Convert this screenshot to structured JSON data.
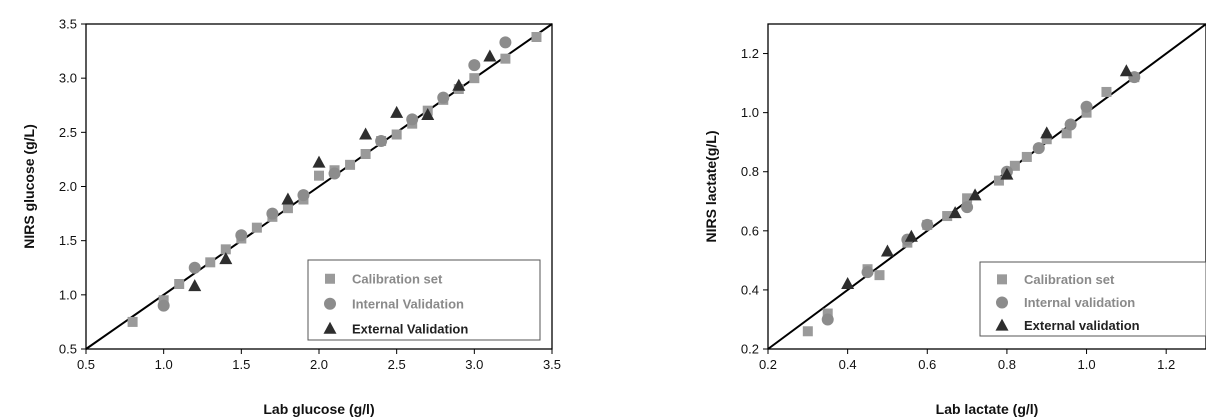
{
  "colors": {
    "calibration": "#9a9a9a",
    "internal": "#8c8c8c",
    "external": "#2e2e2e",
    "line": "#000000",
    "legend_gray_text": "#8a8a8a",
    "legend_dark_text": "#222222"
  },
  "chart_data": [
    {
      "type": "scatter",
      "xlabel": "Lab glucose (g/l)",
      "ylabel": "NIRS  glucose (g/L)",
      "xlim": [
        0.5,
        3.5
      ],
      "ylim": [
        0.5,
        3.5
      ],
      "xticks": [
        "0.5",
        "1.0",
        "1.5",
        "2.0",
        "2.5",
        "3.0",
        "3.5"
      ],
      "yticks": [
        "0.5",
        "1.0",
        "1.5",
        "2.0",
        "2.5",
        "3.0",
        "3.5"
      ],
      "reference_line": [
        [
          0.5,
          0.5
        ],
        [
          3.5,
          3.5
        ]
      ],
      "legend_position": "bottom-right",
      "series": [
        {
          "name": "Calibration set",
          "marker": "square",
          "x": [
            0.8,
            1.0,
            1.1,
            1.3,
            1.4,
            1.5,
            1.6,
            1.7,
            1.8,
            1.9,
            2.0,
            2.1,
            2.2,
            2.3,
            2.4,
            2.5,
            2.6,
            2.7,
            2.8,
            2.9,
            3.0,
            3.2,
            3.4
          ],
          "y": [
            0.75,
            0.95,
            1.1,
            1.3,
            1.42,
            1.52,
            1.62,
            1.72,
            1.8,
            1.88,
            2.1,
            2.15,
            2.2,
            2.3,
            2.42,
            2.48,
            2.58,
            2.7,
            2.8,
            2.9,
            3.0,
            3.18,
            3.38
          ]
        },
        {
          "name": "Internal Validation",
          "marker": "circle",
          "x": [
            1.0,
            1.2,
            1.5,
            1.7,
            1.9,
            2.1,
            2.4,
            2.6,
            2.8,
            3.0,
            3.2
          ],
          "y": [
            0.9,
            1.25,
            1.55,
            1.75,
            1.92,
            2.12,
            2.42,
            2.62,
            2.82,
            3.12,
            3.33
          ]
        },
        {
          "name": "External Validation",
          "marker": "triangle",
          "x": [
            1.2,
            1.4,
            1.8,
            2.0,
            2.3,
            2.5,
            2.7,
            2.9,
            3.1
          ],
          "y": [
            1.08,
            1.33,
            1.88,
            2.22,
            2.48,
            2.68,
            2.66,
            2.93,
            3.2
          ]
        }
      ]
    },
    {
      "type": "scatter",
      "xlabel": "Lab lactate (g/l)",
      "ylabel": "NIRS  lactate(g/L)",
      "xlim": [
        0.2,
        1.3
      ],
      "ylim": [
        0.2,
        1.3
      ],
      "xticks": [
        "0.2",
        "0.4",
        "0.6",
        "0.8",
        "1.0",
        "1.2"
      ],
      "yticks": [
        "0.2",
        "0.4",
        "0.6",
        "0.8",
        "1.0",
        "1.2"
      ],
      "reference_line": [
        [
          0.2,
          0.2
        ],
        [
          1.3,
          1.3
        ]
      ],
      "legend_position": "bottom-right",
      "series": [
        {
          "name": "Calibration set",
          "marker": "square",
          "x": [
            0.3,
            0.35,
            0.45,
            0.48,
            0.55,
            0.6,
            0.65,
            0.7,
            0.78,
            0.82,
            0.85,
            0.9,
            0.95,
            1.0,
            1.05,
            1.12
          ],
          "y": [
            0.26,
            0.32,
            0.47,
            0.45,
            0.56,
            0.62,
            0.65,
            0.71,
            0.77,
            0.82,
            0.85,
            0.91,
            0.93,
            1.0,
            1.07,
            1.12
          ]
        },
        {
          "name": "Internal validation",
          "marker": "circle",
          "x": [
            0.35,
            0.45,
            0.55,
            0.6,
            0.7,
            0.8,
            0.88,
            0.96,
            1.0,
            1.12
          ],
          "y": [
            0.3,
            0.46,
            0.57,
            0.62,
            0.68,
            0.8,
            0.88,
            0.96,
            1.02,
            1.12
          ]
        },
        {
          "name": "External validation",
          "marker": "triangle",
          "x": [
            0.4,
            0.5,
            0.56,
            0.67,
            0.72,
            0.8,
            0.9,
            1.1
          ],
          "y": [
            0.42,
            0.53,
            0.58,
            0.66,
            0.72,
            0.79,
            0.93,
            1.14
          ]
        }
      ]
    }
  ]
}
